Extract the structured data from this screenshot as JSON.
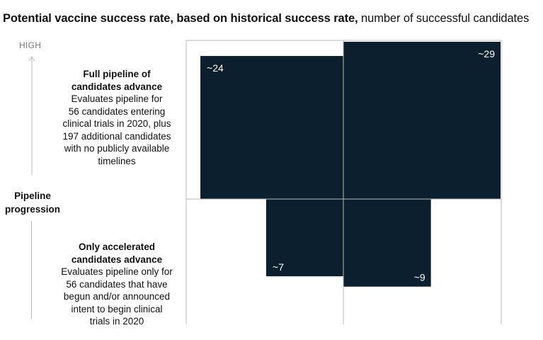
{
  "title": {
    "bold": "Potential vaccine success rate, based on historical success rate,",
    "normal": " number of successful candidates"
  },
  "y_axis": {
    "high_label": "HIGH",
    "title_line1": "Pipeline",
    "title_line2": "progression"
  },
  "rows": [
    {
      "heading_line1": "Full pipeline of",
      "heading_line2": "candidates advance",
      "description_lines": [
        "Evaluates pipeline for",
        "56 candidates entering",
        "clinical trials in 2020, plus",
        "197 additional candidates",
        "with no publicly available",
        "timelines"
      ]
    },
    {
      "heading_line1": "Only accelerated",
      "heading_line2": "candidates advance",
      "description_lines": [
        "Evaluates pipeline only for",
        "56 candidates that have",
        "begun and/or announced",
        "intent to begin clinical",
        "trials in 2020"
      ]
    }
  ],
  "colors": {
    "bar": "#0b1f2e",
    "grid": "#bbbbbb",
    "label_on_bar": "#ffffff"
  },
  "chart_data": {
    "type": "bar",
    "layout": "quadrant",
    "rows": [
      "Full pipeline of candidates advance",
      "Only accelerated candidates advance"
    ],
    "columns": [
      "left",
      "right"
    ],
    "values": [
      [
        24,
        29
      ],
      [
        7,
        9
      ]
    ],
    "labels": [
      [
        "~24",
        "~29"
      ],
      [
        "~7",
        "~9"
      ]
    ],
    "max_value": 29
  }
}
